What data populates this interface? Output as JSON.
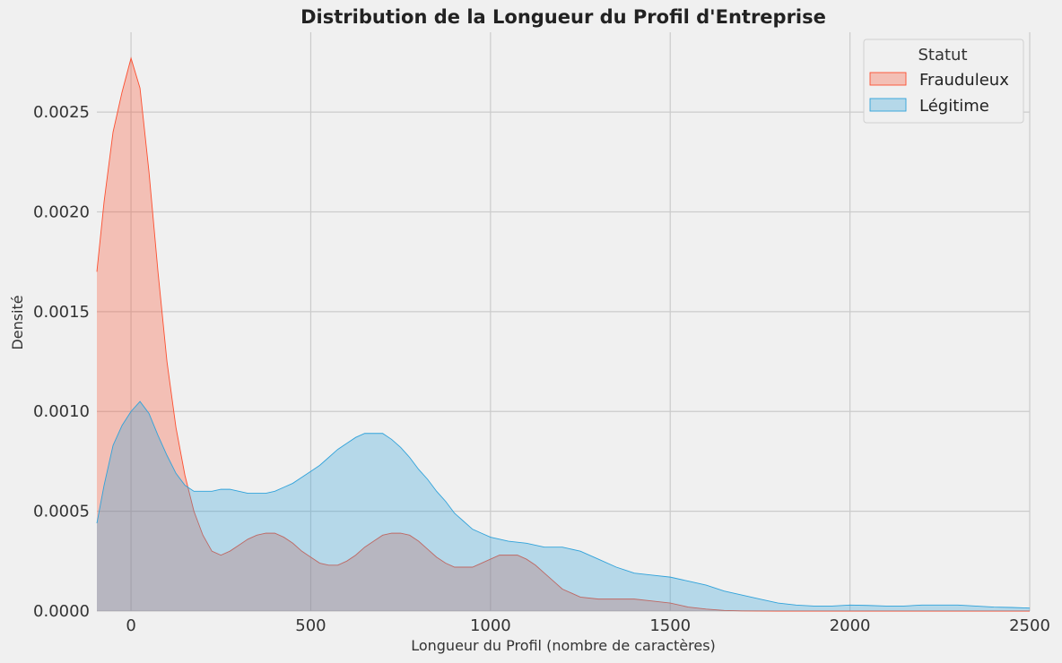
{
  "chart_data": {
    "type": "area",
    "title": "Distribution de la Longueur du Profil d'Entreprise",
    "xlabel": "Longueur du Profil (nombre de caractères)",
    "ylabel": "Densité",
    "xlim": [
      -95,
      2500
    ],
    "ylim": [
      0,
      0.0029
    ],
    "x_ticks": [
      0,
      500,
      1000,
      1500,
      2000,
      2500
    ],
    "x_tick_labels": [
      "0",
      "500",
      "1000",
      "1500",
      "2000",
      "2500"
    ],
    "y_ticks": [
      0,
      0.0005,
      0.001,
      0.0015,
      0.002,
      0.0025
    ],
    "y_tick_labels": [
      "0.0000",
      "0.0005",
      "0.0010",
      "0.0015",
      "0.0020",
      "0.0025"
    ],
    "grid": true,
    "legend": {
      "title": "Statut",
      "placement": "top-right"
    },
    "series": [
      {
        "name": "Frauduleux",
        "color": "#fc4f30",
        "points": [
          [
            -95,
            0.0017
          ],
          [
            -75,
            0.00205
          ],
          [
            -50,
            0.0024
          ],
          [
            -25,
            0.0026
          ],
          [
            0,
            0.00277
          ],
          [
            25,
            0.00262
          ],
          [
            50,
            0.0022
          ],
          [
            75,
            0.0017
          ],
          [
            100,
            0.00125
          ],
          [
            125,
            0.00092
          ],
          [
            150,
            0.00068
          ],
          [
            175,
            0.0005
          ],
          [
            200,
            0.00038
          ],
          [
            225,
            0.0003
          ],
          [
            250,
            0.00028
          ],
          [
            275,
            0.0003
          ],
          [
            300,
            0.00033
          ],
          [
            325,
            0.00036
          ],
          [
            350,
            0.00038
          ],
          [
            375,
            0.00039
          ],
          [
            400,
            0.00039
          ],
          [
            425,
            0.00037
          ],
          [
            450,
            0.00034
          ],
          [
            475,
            0.0003
          ],
          [
            500,
            0.00027
          ],
          [
            525,
            0.00024
          ],
          [
            550,
            0.00023
          ],
          [
            575,
            0.00023
          ],
          [
            600,
            0.00025
          ],
          [
            625,
            0.00028
          ],
          [
            650,
            0.00032
          ],
          [
            675,
            0.00035
          ],
          [
            700,
            0.00038
          ],
          [
            725,
            0.00039
          ],
          [
            750,
            0.00039
          ],
          [
            775,
            0.00038
          ],
          [
            800,
            0.00035
          ],
          [
            825,
            0.00031
          ],
          [
            850,
            0.00027
          ],
          [
            875,
            0.00024
          ],
          [
            900,
            0.00022
          ],
          [
            925,
            0.00022
          ],
          [
            950,
            0.00022
          ],
          [
            975,
            0.00024
          ],
          [
            1000,
            0.00026
          ],
          [
            1025,
            0.00028
          ],
          [
            1050,
            0.00028
          ],
          [
            1075,
            0.00028
          ],
          [
            1100,
            0.00026
          ],
          [
            1125,
            0.00023
          ],
          [
            1150,
            0.00019
          ],
          [
            1175,
            0.00015
          ],
          [
            1200,
            0.00011
          ],
          [
            1225,
            9e-05
          ],
          [
            1250,
            7e-05
          ],
          [
            1300,
            6e-05
          ],
          [
            1350,
            6e-05
          ],
          [
            1400,
            6e-05
          ],
          [
            1450,
            5e-05
          ],
          [
            1500,
            4e-05
          ],
          [
            1550,
            2e-05
          ],
          [
            1600,
            1e-05
          ],
          [
            1650,
            3e-06
          ],
          [
            1700,
            1e-06
          ],
          [
            1800,
            0
          ],
          [
            2000,
            0
          ],
          [
            2500,
            0
          ]
        ]
      },
      {
        "name": "Légitime",
        "color": "#30a2da",
        "points": [
          [
            -95,
            0.00044
          ],
          [
            -75,
            0.00063
          ],
          [
            -50,
            0.00083
          ],
          [
            -25,
            0.00093
          ],
          [
            0,
            0.001
          ],
          [
            25,
            0.00105
          ],
          [
            50,
            0.00099
          ],
          [
            75,
            0.00088
          ],
          [
            100,
            0.00078
          ],
          [
            125,
            0.00069
          ],
          [
            150,
            0.00063
          ],
          [
            175,
            0.0006
          ],
          [
            200,
            0.0006
          ],
          [
            225,
            0.0006
          ],
          [
            250,
            0.00061
          ],
          [
            275,
            0.00061
          ],
          [
            300,
            0.0006
          ],
          [
            325,
            0.00059
          ],
          [
            350,
            0.00059
          ],
          [
            375,
            0.00059
          ],
          [
            400,
            0.0006
          ],
          [
            425,
            0.00062
          ],
          [
            450,
            0.00064
          ],
          [
            475,
            0.00067
          ],
          [
            500,
            0.0007
          ],
          [
            525,
            0.00073
          ],
          [
            550,
            0.00077
          ],
          [
            575,
            0.00081
          ],
          [
            600,
            0.00084
          ],
          [
            625,
            0.00087
          ],
          [
            650,
            0.00089
          ],
          [
            675,
            0.00089
          ],
          [
            700,
            0.00089
          ],
          [
            725,
            0.00086
          ],
          [
            750,
            0.00082
          ],
          [
            775,
            0.00077
          ],
          [
            800,
            0.00071
          ],
          [
            825,
            0.00066
          ],
          [
            850,
            0.0006
          ],
          [
            875,
            0.00055
          ],
          [
            900,
            0.00049
          ],
          [
            925,
            0.00045
          ],
          [
            950,
            0.00041
          ],
          [
            975,
            0.00039
          ],
          [
            1000,
            0.00037
          ],
          [
            1050,
            0.00035
          ],
          [
            1100,
            0.00034
          ],
          [
            1150,
            0.00032
          ],
          [
            1200,
            0.00032
          ],
          [
            1250,
            0.0003
          ],
          [
            1300,
            0.00026
          ],
          [
            1350,
            0.00022
          ],
          [
            1400,
            0.00019
          ],
          [
            1450,
            0.00018
          ],
          [
            1500,
            0.00017
          ],
          [
            1550,
            0.00015
          ],
          [
            1600,
            0.00013
          ],
          [
            1650,
            0.0001
          ],
          [
            1700,
            8e-05
          ],
          [
            1750,
            6e-05
          ],
          [
            1800,
            4e-05
          ],
          [
            1850,
            3e-05
          ],
          [
            1900,
            2.5e-05
          ],
          [
            1950,
            2.5e-05
          ],
          [
            2000,
            3e-05
          ],
          [
            2050,
            2.8e-05
          ],
          [
            2100,
            2.5e-05
          ],
          [
            2150,
            2.5e-05
          ],
          [
            2200,
            3e-05
          ],
          [
            2250,
            3e-05
          ],
          [
            2300,
            3e-05
          ],
          [
            2350,
            2.5e-05
          ],
          [
            2400,
            2e-05
          ],
          [
            2450,
            1.8e-05
          ],
          [
            2500,
            1.5e-05
          ]
        ]
      }
    ]
  }
}
